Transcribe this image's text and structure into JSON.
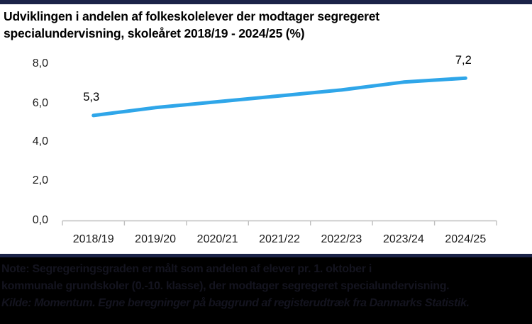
{
  "page": {
    "background_color": "#ffffff",
    "accent_bar_color": "#1b2348"
  },
  "title": {
    "line1": "Udviklingen i andelen af folkeskolelever der modtager segregeret",
    "line2": "specialundervisning, skoleåret 2018/19 - 2024/25 (%)"
  },
  "chart_data": {
    "type": "line",
    "title": "Udviklingen i andelen af folkeskolelever der modtager segregeret specialundervisning, skoleåret 2018/19 - 2024/25 (%)",
    "categories": [
      "2018/19",
      "2019/20",
      "2020/21",
      "2021/22",
      "2022/23",
      "2023/24",
      "2024/25"
    ],
    "values": [
      5.3,
      5.7,
      6.0,
      6.3,
      6.6,
      7.0,
      7.2
    ],
    "point_labels": {
      "first": "5,3",
      "last": "7,2"
    },
    "ytick_labels": [
      "8,0",
      "6,0",
      "4,0",
      "2,0",
      "0,0"
    ],
    "ylim": [
      0,
      8
    ],
    "xlabel": "",
    "ylabel": "",
    "grid": false,
    "legend": "none",
    "line_color": "#2fa6e9"
  },
  "footer": {
    "note_line1": "Note: Segregeringsgraden er målt som andelen af elever pr. 1. oktober i",
    "note_line2": "kommunale grundskoler (0.-10. klasse), der modtager segregeret specialundervisning.",
    "source": "Kilde: Momentum. Egne beregninger på baggrund af registerudtræk fra Danmarks Statistik."
  }
}
